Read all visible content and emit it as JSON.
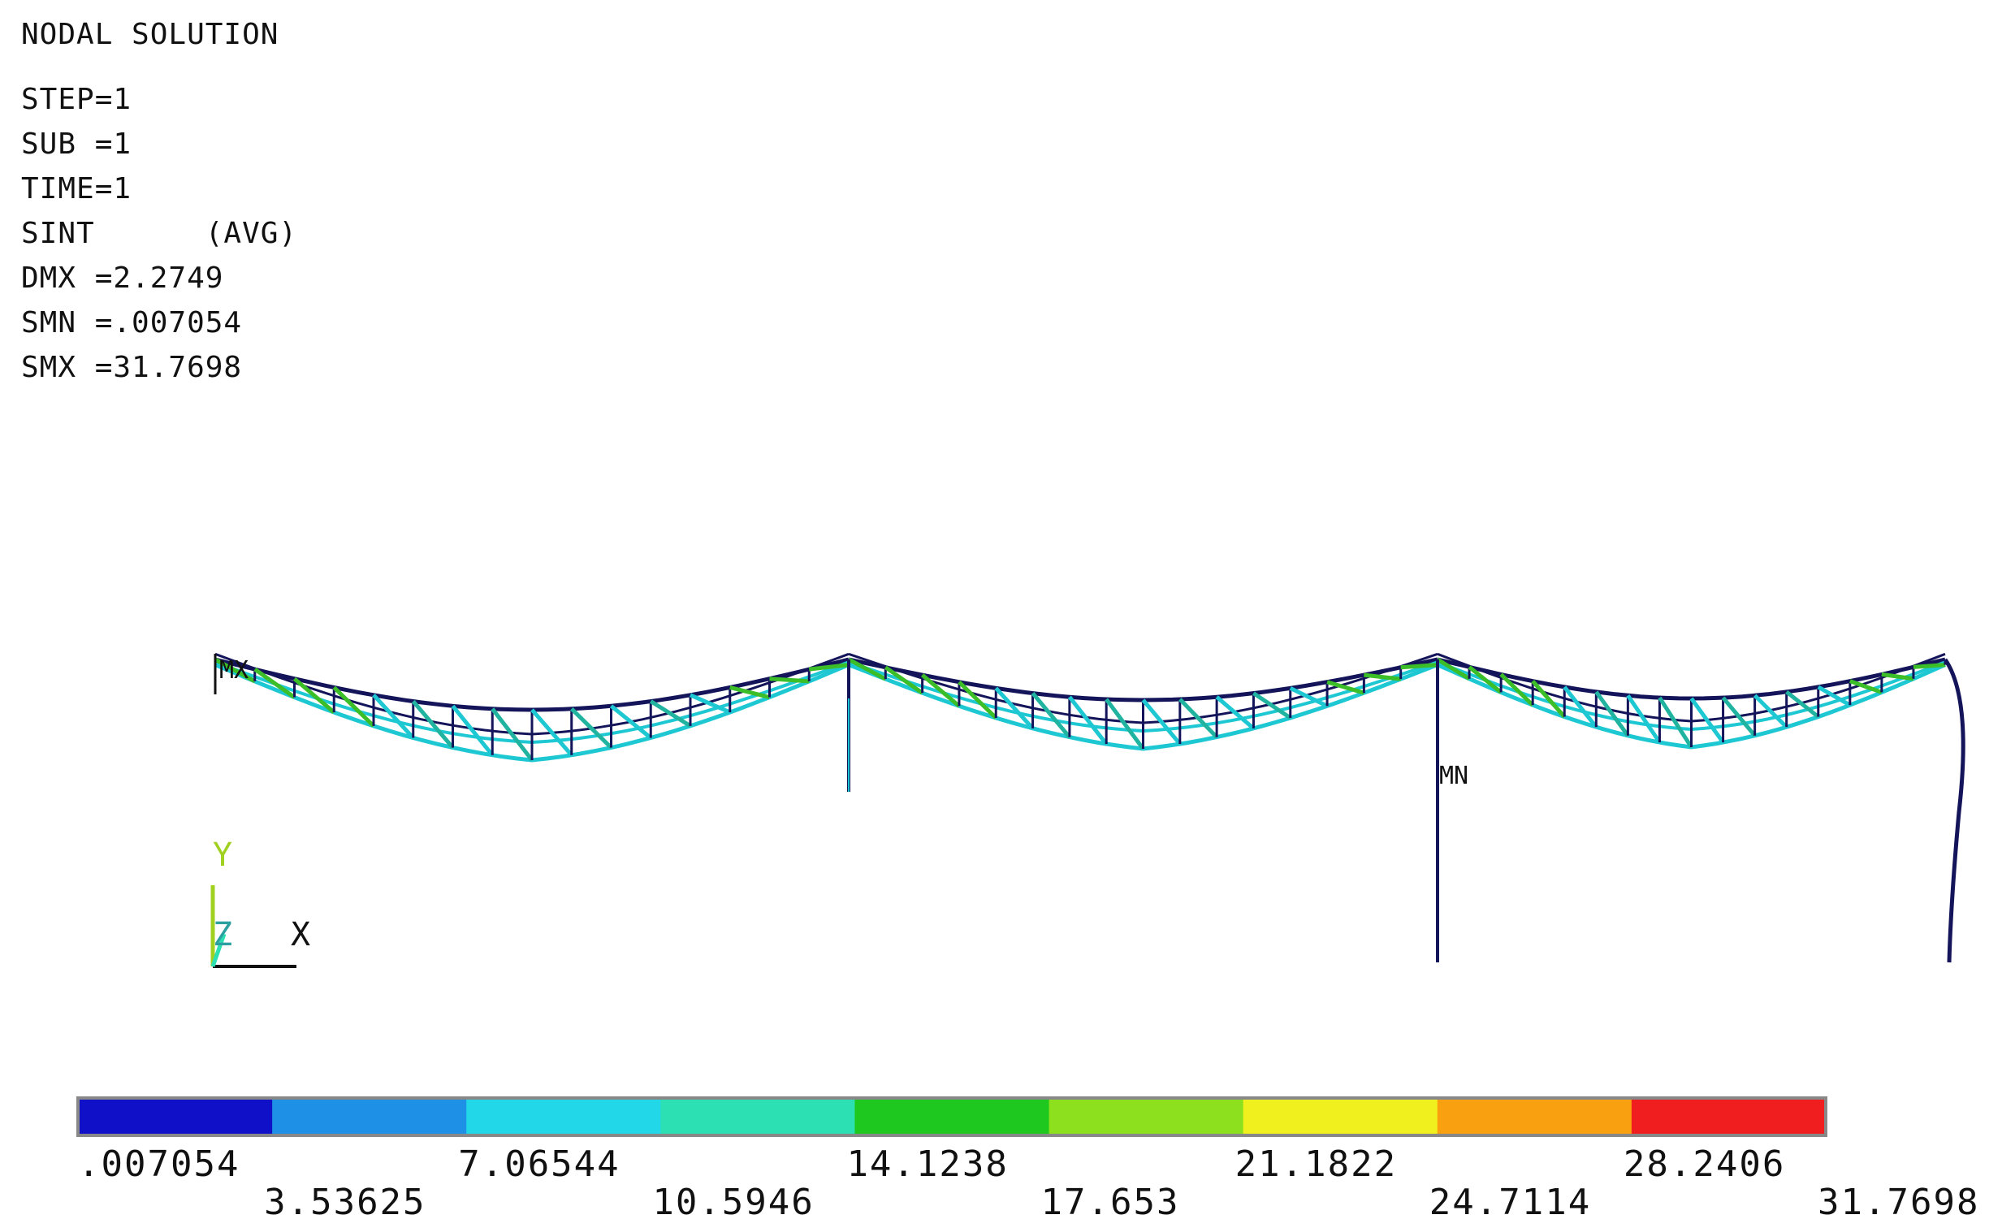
{
  "header": {
    "title": "NODAL SOLUTION",
    "step": "STEP=1",
    "sub": "SUB =1",
    "time": "TIME=1",
    "result": "SINT      (AVG)",
    "dmx": "DMX =2.2749",
    "smn": "SMN =.007054",
    "smx": "SMX =31.7698"
  },
  "markers": {
    "max": "MX",
    "min": "MN"
  },
  "triad": {
    "y": "Y",
    "z": "Z",
    "x": "X"
  },
  "legend": {
    "colors": [
      "#1010c8",
      "#1e90e6",
      "#22d8e8",
      "#2ce0b4",
      "#1ec81e",
      "#8ce01e",
      "#f0f01e",
      "#f8a010",
      "#f01e1e"
    ],
    "labels": [
      ".007054",
      "3.53625",
      "7.06544",
      "10.5946",
      "14.1238",
      "17.653",
      "21.1822",
      "24.7114",
      "28.2406",
      "31.7698"
    ]
  },
  "colors": {
    "frame_dark": "#14145a",
    "member_cyan": "#1ec8d2",
    "member_teal": "#20b4a0",
    "member_green": "#3cbe28"
  }
}
